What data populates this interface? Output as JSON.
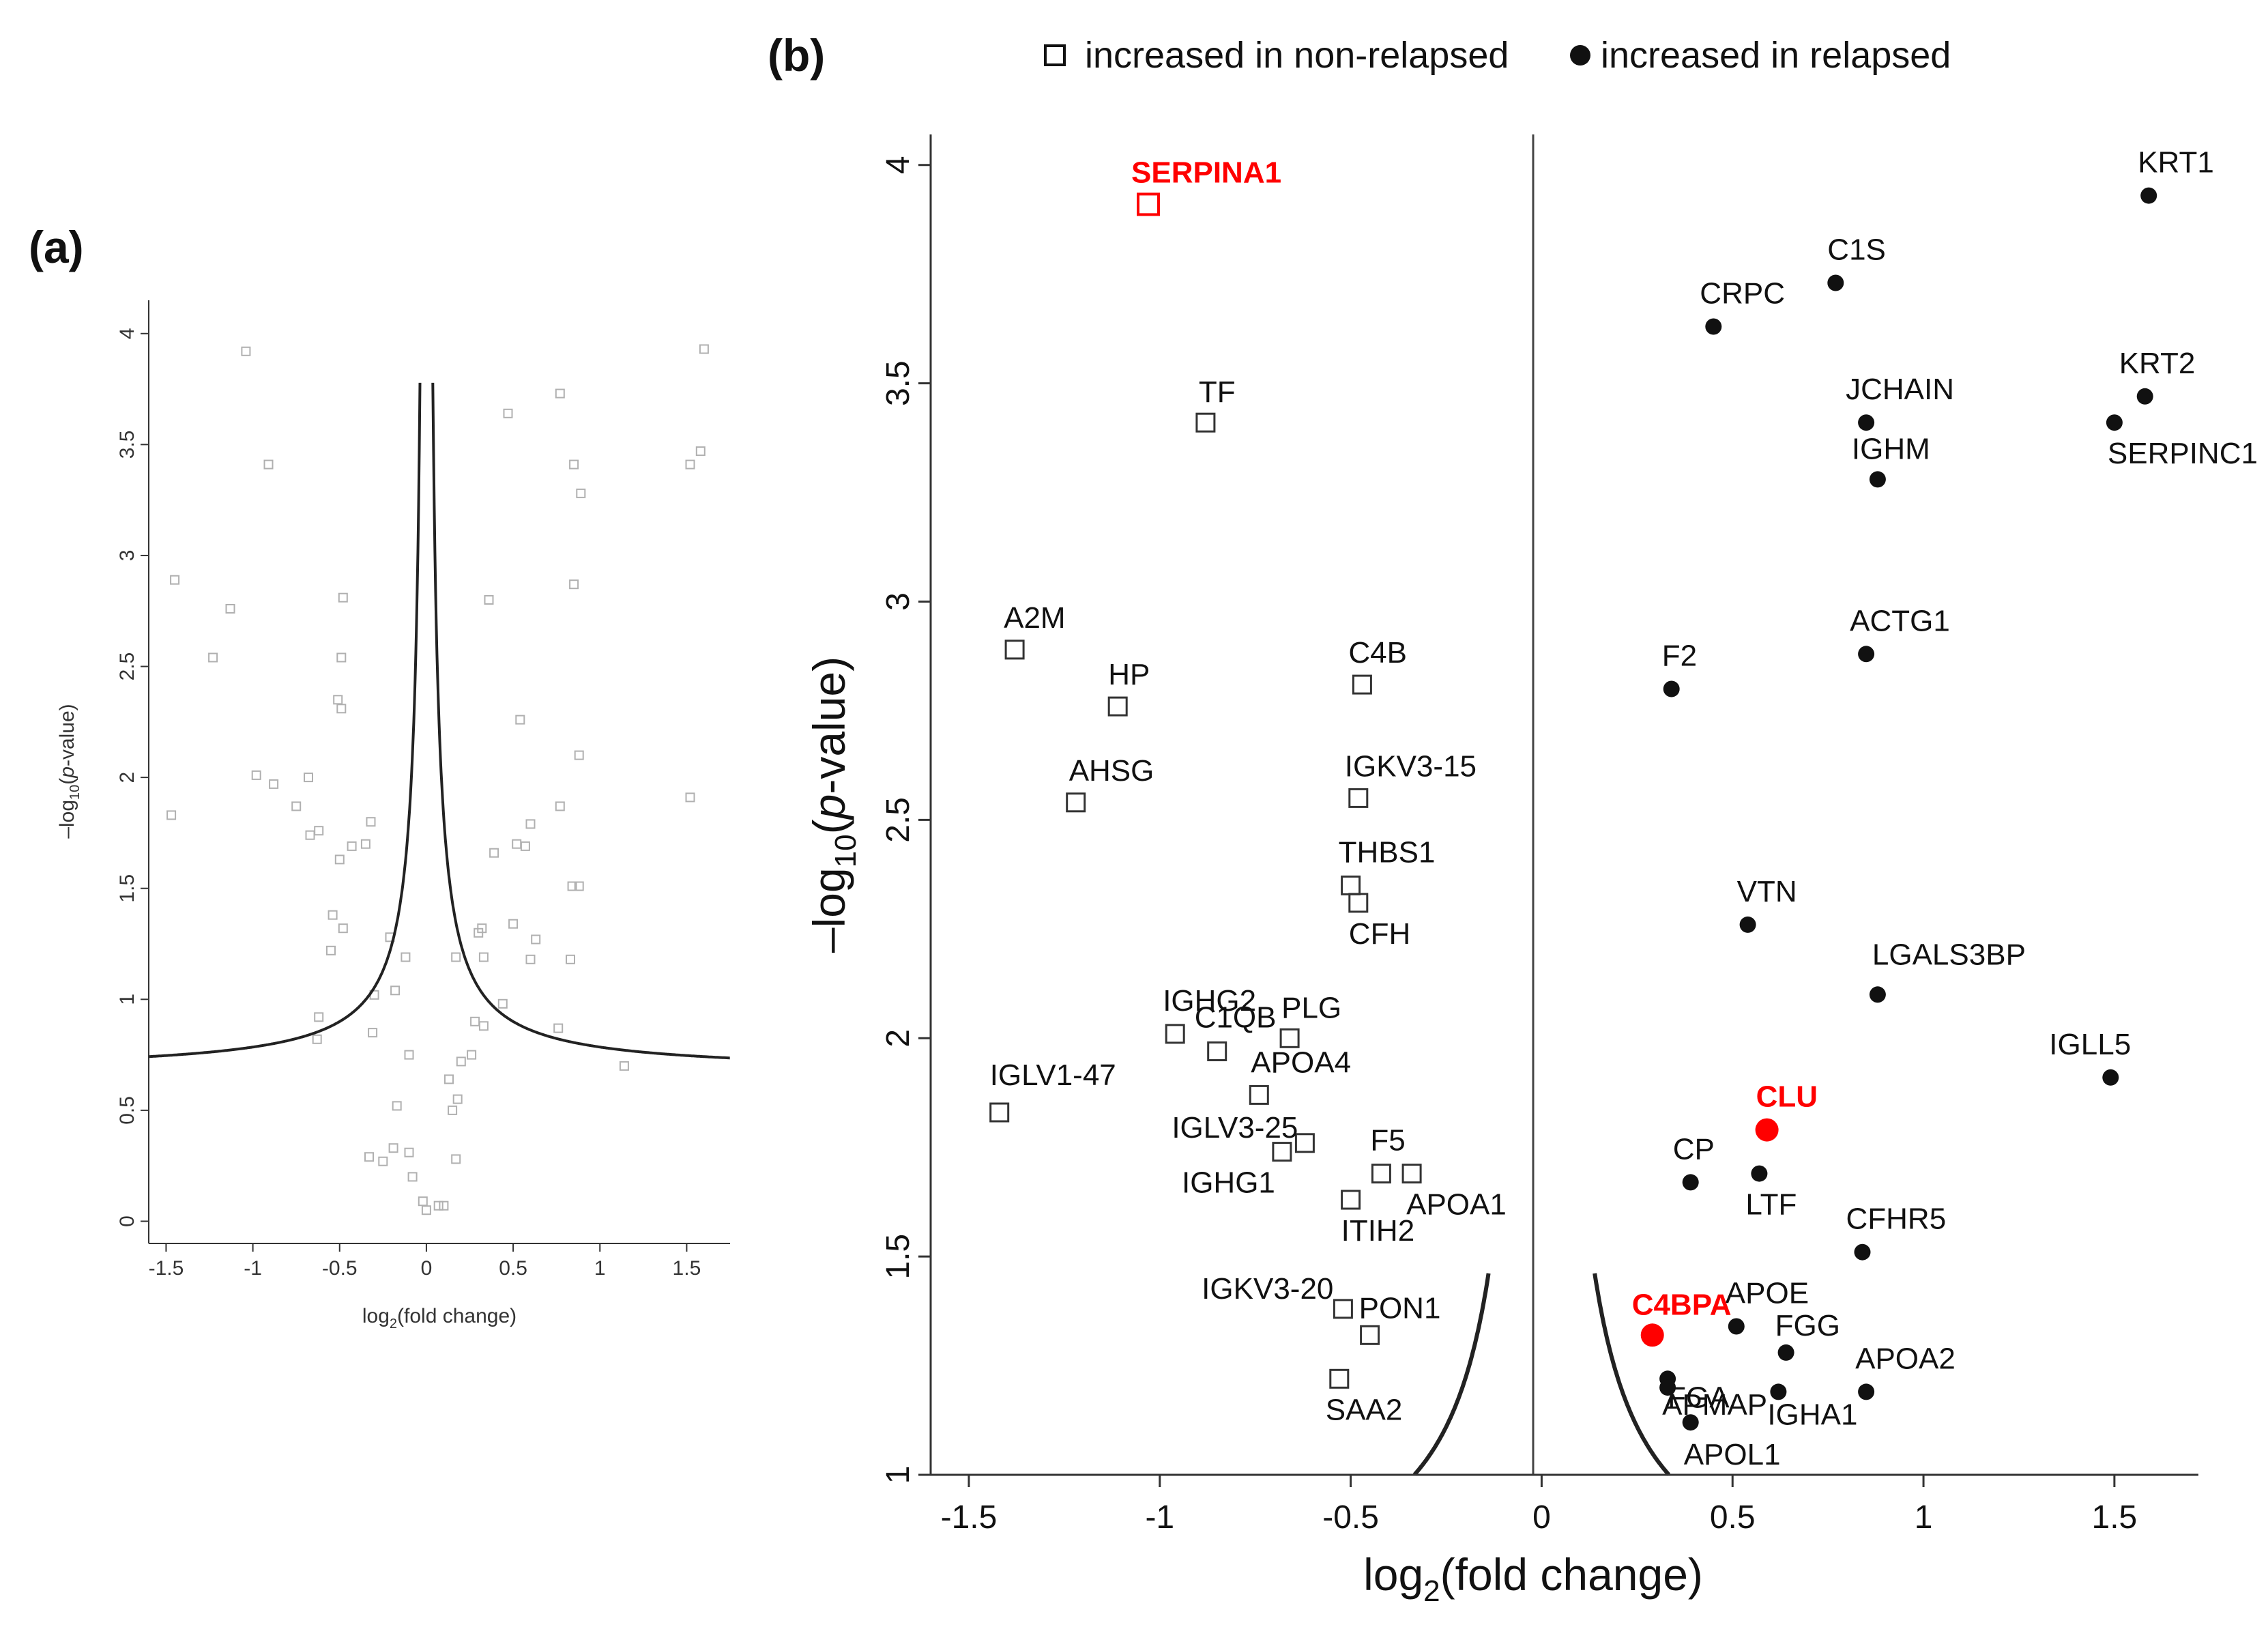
{
  "panel_a": {
    "label": "(a)",
    "xlabel_base": "log",
    "xlabel_sub": "2",
    "xlabel_rest": "(fold change)",
    "ylabel_prefix": "–log",
    "ylabel_sub": "10",
    "ylabel_open": "(",
    "ylabel_italic": "p",
    "ylabel_rest": "-value)",
    "xticks": [
      "-1.5",
      "-1",
      "-0.5",
      "0",
      "0.5",
      "1",
      "1.5"
    ],
    "yticks": [
      "0",
      "0.5",
      "1",
      "1.5",
      "2",
      "2.5",
      "3",
      "3.5",
      "4"
    ]
  },
  "panel_b": {
    "label": "(b)",
    "xlabel_base": "log",
    "xlabel_sub": "2",
    "xlabel_rest": "(fold change)",
    "ylabel_prefix": "–log",
    "ylabel_sub": "10",
    "ylabel_open": "(",
    "ylabel_italic": "p",
    "ylabel_rest": "-value)",
    "xticks": [
      "-1.5",
      "-1",
      "-0.5",
      "0",
      "0.5",
      "1",
      "1.5"
    ],
    "yticks": [
      "1",
      "1.5",
      "2",
      "2.5",
      "3",
      "3.5",
      "4"
    ]
  },
  "legend": {
    "nonrelapsed_label": "increased in non-relapsed",
    "relapsed_label": "increased in relapsed"
  },
  "colors": {
    "highlight": "#ff0000",
    "marker_a": "#b0b0b0",
    "curve": "#222222"
  },
  "chart_data": [
    {
      "panel": "a",
      "type": "scatter",
      "xlim": [
        -1.6,
        1.75
      ],
      "ylim": [
        -0.1,
        4.15
      ],
      "grid": false,
      "threshold_curve": true,
      "points": [
        {
          "x": -1.04,
          "y": 3.92
        },
        {
          "x": -0.91,
          "y": 3.41
        },
        {
          "x": -1.45,
          "y": 2.89
        },
        {
          "x": -1.13,
          "y": 2.76
        },
        {
          "x": -1.23,
          "y": 2.54
        },
        {
          "x": -1.47,
          "y": 1.83
        },
        {
          "x": -0.98,
          "y": 2.01
        },
        {
          "x": -0.88,
          "y": 1.97
        },
        {
          "x": -0.75,
          "y": 1.87
        },
        {
          "x": -0.68,
          "y": 2.0
        },
        {
          "x": -0.62,
          "y": 1.76
        },
        {
          "x": -0.67,
          "y": 1.74
        },
        {
          "x": -0.48,
          "y": 2.81
        },
        {
          "x": -0.49,
          "y": 2.54
        },
        {
          "x": -0.51,
          "y": 2.35
        },
        {
          "x": -0.49,
          "y": 2.31
        },
        {
          "x": -0.32,
          "y": 1.8
        },
        {
          "x": -0.35,
          "y": 1.7
        },
        {
          "x": -0.43,
          "y": 1.69
        },
        {
          "x": -0.5,
          "y": 1.63
        },
        {
          "x": -0.54,
          "y": 1.38
        },
        {
          "x": -0.48,
          "y": 1.32
        },
        {
          "x": -0.55,
          "y": 1.22
        },
        {
          "x": -0.21,
          "y": 1.28
        },
        {
          "x": -0.12,
          "y": 1.19
        },
        {
          "x": -0.3,
          "y": 1.02
        },
        {
          "x": -0.18,
          "y": 1.04
        },
        {
          "x": -0.62,
          "y": 0.92
        },
        {
          "x": -0.63,
          "y": 0.82
        },
        {
          "x": -0.31,
          "y": 0.85
        },
        {
          "x": -0.1,
          "y": 0.75
        },
        {
          "x": -0.17,
          "y": 0.52
        },
        {
          "x": -0.19,
          "y": 0.33
        },
        {
          "x": -0.1,
          "y": 0.31
        },
        {
          "x": -0.33,
          "y": 0.29
        },
        {
          "x": -0.25,
          "y": 0.27
        },
        {
          "x": -0.08,
          "y": 0.2
        },
        {
          "x": -0.02,
          "y": 0.09
        },
        {
          "x": 0.0,
          "y": 0.05
        },
        {
          "x": 0.07,
          "y": 0.07
        },
        {
          "x": 0.1,
          "y": 0.07
        },
        {
          "x": 0.17,
          "y": 0.28
        },
        {
          "x": 0.15,
          "y": 0.5
        },
        {
          "x": 0.18,
          "y": 0.55
        },
        {
          "x": 0.13,
          "y": 0.64
        },
        {
          "x": 0.2,
          "y": 0.72
        },
        {
          "x": 0.26,
          "y": 0.75
        },
        {
          "x": 0.28,
          "y": 0.9
        },
        {
          "x": 0.33,
          "y": 0.88
        },
        {
          "x": 0.44,
          "y": 0.98
        },
        {
          "x": 0.17,
          "y": 1.19
        },
        {
          "x": 0.33,
          "y": 1.19
        },
        {
          "x": 0.32,
          "y": 1.32
        },
        {
          "x": 0.3,
          "y": 1.3
        },
        {
          "x": 0.5,
          "y": 1.34
        },
        {
          "x": 0.6,
          "y": 1.18
        },
        {
          "x": 0.63,
          "y": 1.27
        },
        {
          "x": 0.83,
          "y": 1.18
        },
        {
          "x": 0.88,
          "y": 1.51
        },
        {
          "x": 0.52,
          "y": 1.7
        },
        {
          "x": 0.6,
          "y": 1.79
        },
        {
          "x": 0.77,
          "y": 1.87
        },
        {
          "x": 0.39,
          "y": 1.66
        },
        {
          "x": 0.57,
          "y": 1.69
        },
        {
          "x": 0.84,
          "y": 1.51
        },
        {
          "x": 0.54,
          "y": 2.26
        },
        {
          "x": 0.88,
          "y": 2.1
        },
        {
          "x": 0.85,
          "y": 2.87
        },
        {
          "x": 0.36,
          "y": 2.8
        },
        {
          "x": 0.47,
          "y": 3.64
        },
        {
          "x": 0.77,
          "y": 3.73
        },
        {
          "x": 0.85,
          "y": 3.41
        },
        {
          "x": 0.89,
          "y": 3.28
        },
        {
          "x": 1.52,
          "y": 3.41
        },
        {
          "x": 1.58,
          "y": 3.47
        },
        {
          "x": 1.6,
          "y": 3.93
        },
        {
          "x": 1.52,
          "y": 1.91
        },
        {
          "x": 1.14,
          "y": 0.7
        },
        {
          "x": 0.76,
          "y": 0.87
        }
      ]
    },
    {
      "panel": "b",
      "type": "scatter",
      "xlim": [
        -1.6,
        1.72
      ],
      "ylim": [
        1.0,
        4.07
      ],
      "grid": false,
      "threshold_curve": true,
      "legend": "top",
      "series": [
        {
          "name": "increased in non-relapsed",
          "marker": "open-square",
          "points": [
            {
              "label": "SERPINA1",
              "x": -1.03,
              "y": 3.91,
              "highlight": true
            },
            {
              "label": "TF",
              "x": -0.88,
              "y": 3.41
            },
            {
              "label": "A2M",
              "x": -1.38,
              "y": 2.89
            },
            {
              "label": "HP",
              "x": -1.11,
              "y": 2.76
            },
            {
              "label": "AHSG",
              "x": -1.22,
              "y": 2.54
            },
            {
              "label": "C4B",
              "x": -0.47,
              "y": 2.81
            },
            {
              "label": "IGKV3-15",
              "x": -0.48,
              "y": 2.55
            },
            {
              "label": "THBS1",
              "x": -0.5,
              "y": 2.35
            },
            {
              "label": "CFH",
              "x": -0.48,
              "y": 2.31
            },
            {
              "label": "IGHG2",
              "x": -0.96,
              "y": 2.01
            },
            {
              "label": "PLG",
              "x": -0.66,
              "y": 2.0
            },
            {
              "label": "C1QB",
              "x": -0.85,
              "y": 1.97
            },
            {
              "label": "APOA4",
              "x": -0.74,
              "y": 1.87
            },
            {
              "label": "IGLV1-47",
              "x": -1.42,
              "y": 1.83
            },
            {
              "label": "IGLV3-25",
              "x": -0.62,
              "y": 1.76
            },
            {
              "label": "IGHG1",
              "x": -0.68,
              "y": 1.74
            },
            {
              "label": "F5",
              "x": -0.42,
              "y": 1.69
            },
            {
              "label": "APOA1",
              "x": -0.34,
              "y": 1.69
            },
            {
              "label": "ITIH2",
              "x": -0.5,
              "y": 1.63
            },
            {
              "label": "IGKV3-20",
              "x": -0.52,
              "y": 1.38
            },
            {
              "label": "PON1",
              "x": -0.45,
              "y": 1.32
            },
            {
              "label": "SAA2",
              "x": -0.53,
              "y": 1.22
            }
          ]
        },
        {
          "name": "increased in relapsed",
          "marker": "filled-circle",
          "points": [
            {
              "label": "KRT1",
              "x": 1.59,
              "y": 3.93
            },
            {
              "label": "C1S",
              "x": 0.77,
              "y": 3.73
            },
            {
              "label": "CRPC",
              "x": 0.45,
              "y": 3.63
            },
            {
              "label": "KRT2",
              "x": 1.58,
              "y": 3.47
            },
            {
              "label": "JCHAIN",
              "x": 0.85,
              "y": 3.41
            },
            {
              "label": "SERPINC1",
              "x": 1.5,
              "y": 3.41
            },
            {
              "label": "IGHM",
              "x": 0.88,
              "y": 3.28
            },
            {
              "label": "ACTG1",
              "x": 0.85,
              "y": 2.88
            },
            {
              "label": "F2",
              "x": 0.34,
              "y": 2.8
            },
            {
              "label": "VTN",
              "x": 0.54,
              "y": 2.26
            },
            {
              "label": "LGALS3BP",
              "x": 0.88,
              "y": 2.1
            },
            {
              "label": "IGLL5",
              "x": 1.49,
              "y": 1.91
            },
            {
              "label": "CLU",
              "x": 0.59,
              "y": 1.79,
              "highlight": true
            },
            {
              "label": "LTF",
              "x": 0.57,
              "y": 1.69
            },
            {
              "label": "CP",
              "x": 0.39,
              "y": 1.67
            },
            {
              "label": "CFHR5",
              "x": 0.84,
              "y": 1.51
            },
            {
              "label": "APOE",
              "x": 0.51,
              "y": 1.34
            },
            {
              "label": "C4BPA",
              "x": 0.29,
              "y": 1.32,
              "highlight": true
            },
            {
              "label": "FGG",
              "x": 0.64,
              "y": 1.28
            },
            {
              "label": "FGA",
              "x": 0.33,
              "y": 1.22
            },
            {
              "label": "APMAP",
              "x": 0.33,
              "y": 1.2
            },
            {
              "label": "IGHA1",
              "x": 0.62,
              "y": 1.19
            },
            {
              "label": "APOA2",
              "x": 0.85,
              "y": 1.19
            },
            {
              "label": "APOL1",
              "x": 0.39,
              "y": 1.12
            }
          ]
        }
      ]
    }
  ]
}
